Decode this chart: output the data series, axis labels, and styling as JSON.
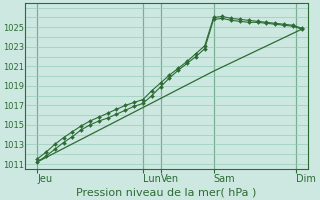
{
  "background_color": "#cce8e0",
  "grid_color": "#99ccbb",
  "line_color": "#2d6b35",
  "xlabel": "Pression niveau de la mer( hPa )",
  "ylim": [
    1010.5,
    1027.5
  ],
  "xlim": [
    0,
    192
  ],
  "day_labels": [
    "Jeu",
    "Lun",
    "Ven",
    "Sam",
    "Dim"
  ],
  "day_positions": [
    8,
    80,
    92,
    128,
    184
  ],
  "vline_positions": [
    8,
    80,
    92,
    128,
    184
  ],
  "line1_x": [
    8,
    14,
    20,
    26,
    32,
    38,
    44,
    50,
    56,
    62,
    68,
    74,
    80,
    86,
    92,
    98,
    104,
    110,
    116,
    122,
    128,
    134,
    140,
    146,
    152,
    158,
    164,
    170,
    176,
    182,
    188
  ],
  "line1_y": [
    1011.2,
    1011.8,
    1012.5,
    1013.2,
    1013.8,
    1014.5,
    1015.0,
    1015.4,
    1015.7,
    1016.1,
    1016.5,
    1016.9,
    1017.2,
    1018.0,
    1018.9,
    1019.8,
    1020.6,
    1021.3,
    1022.0,
    1022.8,
    1025.8,
    1025.9,
    1025.7,
    1025.6,
    1025.5,
    1025.5,
    1025.4,
    1025.3,
    1025.2,
    1025.1,
    1024.8
  ],
  "line2_x": [
    8,
    14,
    20,
    26,
    32,
    38,
    44,
    50,
    56,
    62,
    68,
    74,
    80,
    86,
    92,
    98,
    104,
    110,
    116,
    122,
    128,
    134,
    140,
    146,
    152,
    158,
    164,
    170,
    176,
    182,
    188
  ],
  "line2_y": [
    1011.5,
    1012.2,
    1013.0,
    1013.7,
    1014.3,
    1014.9,
    1015.4,
    1015.8,
    1016.2,
    1016.6,
    1017.0,
    1017.3,
    1017.6,
    1018.5,
    1019.3,
    1020.1,
    1020.8,
    1021.5,
    1022.3,
    1023.1,
    1026.0,
    1026.1,
    1025.9,
    1025.8,
    1025.7,
    1025.6,
    1025.5,
    1025.4,
    1025.3,
    1025.2,
    1024.9
  ],
  "line3_x": [
    8,
    128,
    188
  ],
  "line3_y": [
    1011.2,
    1020.5,
    1024.8
  ],
  "yticks": [
    1011,
    1013,
    1015,
    1017,
    1019,
    1021,
    1023,
    1025
  ],
  "ytick_fontsize": 6,
  "xtick_fontsize": 7,
  "xlabel_fontsize": 8
}
